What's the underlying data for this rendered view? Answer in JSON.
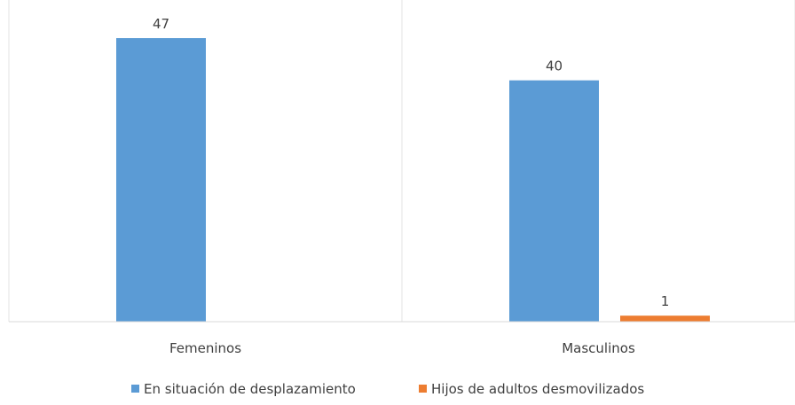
{
  "chart_data": {
    "type": "bar",
    "title": "",
    "xlabel": "",
    "ylabel": "",
    "categories": [
      "Femeninos",
      "Masculinos"
    ],
    "series": [
      {
        "name": "En situación de desplazamiento",
        "values": [
          47,
          40
        ],
        "color": "#5B9BD5"
      },
      {
        "name": "Hijos de adultos desmovilizados",
        "values": [
          null,
          1
        ],
        "color": "#ED7D31"
      }
    ],
    "ylim": [
      0,
      50
    ],
    "grid": "vertical",
    "legend_position": "bottom"
  }
}
